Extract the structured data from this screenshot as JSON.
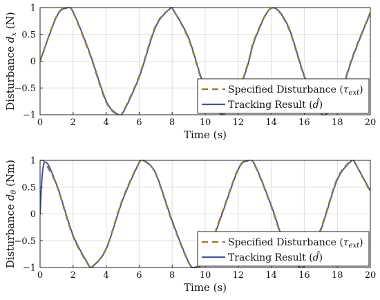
{
  "chart_data": [
    {
      "type": "line",
      "xlabel": "Time (s)",
      "ylabel": "Disturbance d_x (N)",
      "ylabel_parts": {
        "prefix": "Disturbance ",
        "symbol": "d",
        "subscript": "x",
        "suffix": " (N)"
      },
      "xlim": [
        0,
        20
      ],
      "ylim": [
        -1,
        1
      ],
      "x_ticks": [
        0,
        2,
        4,
        6,
        8,
        10,
        12,
        14,
        16,
        18,
        20
      ],
      "x_tick_labels": [
        "0",
        "2",
        "4",
        "6",
        "8",
        "10",
        "12",
        "14",
        "16",
        "18",
        "20"
      ],
      "y_ticks": [
        -1,
        -0.5,
        0,
        0.5,
        1
      ],
      "y_tick_labels": [
        "−1",
        "−0.5",
        "0",
        "0.5",
        "1"
      ],
      "grid": true,
      "legend_location": "bottom-right",
      "x": [
        0,
        1,
        1.6,
        2,
        3,
        4,
        4.7,
        5,
        6,
        7,
        7.9,
        8,
        9,
        10,
        11,
        12,
        12.6,
        13,
        14,
        15,
        16,
        17,
        17.3,
        18,
        19,
        20
      ],
      "series": [
        {
          "name": "Specified Disturbance (τ_ext)",
          "legend_label": {
            "text": "Specified Disturbance (",
            "symbol": "τ",
            "subscript": "ext",
            "close": ")"
          },
          "style": "dashed",
          "color": "#a07a2a",
          "values": [
            0.0,
            0.84,
            1.0,
            0.91,
            0.14,
            -0.76,
            -1.0,
            -0.96,
            -0.28,
            0.66,
            0.99,
            0.99,
            0.41,
            -0.54,
            -1.0,
            -0.54,
            -0.03,
            0.42,
            0.99,
            0.65,
            -0.29,
            -0.96,
            -0.98,
            -0.75,
            0.15,
            0.91
          ]
        },
        {
          "name": "Tracking Result (d̂)",
          "legend_label": {
            "text": "Tracking Result (",
            "symbol": "d̂",
            "close": ")"
          },
          "style": "solid",
          "color": "#3a56b4",
          "values": [
            0.0,
            0.83,
            0.99,
            0.92,
            0.16,
            -0.74,
            -0.99,
            -0.97,
            -0.3,
            0.64,
            0.99,
            0.99,
            0.43,
            -0.52,
            -0.99,
            -0.56,
            -0.05,
            0.4,
            0.99,
            0.67,
            -0.27,
            -0.95,
            -0.99,
            -0.77,
            0.13,
            0.9
          ]
        }
      ]
    },
    {
      "type": "line",
      "xlabel": "Time (s)",
      "ylabel": "Disturbance d_θ (Nm)",
      "ylabel_parts": {
        "prefix": "Disturbance ",
        "symbol": "d",
        "subscript": "θ",
        "suffix": " (Nm)"
      },
      "xlim": [
        0,
        20
      ],
      "ylim": [
        -1,
        1
      ],
      "x_ticks": [
        0,
        2,
        4,
        6,
        8,
        10,
        12,
        14,
        16,
        18,
        20
      ],
      "x_tick_labels": [
        "0",
        "2",
        "4",
        "6",
        "8",
        "10",
        "12",
        "14",
        "16",
        "18",
        "20"
      ],
      "y_ticks": [
        -1,
        -0.5,
        0,
        0.5,
        1
      ],
      "y_tick_labels": [
        "−1",
        "−0.5",
        "0",
        "0.5",
        "1"
      ],
      "grid": true,
      "legend_location": "bottom-right",
      "x": [
        0,
        0.25,
        1,
        2,
        3,
        3.14,
        4,
        5,
        6,
        6.28,
        7,
        8,
        9,
        9.42,
        10,
        11,
        12,
        12.57,
        13,
        14,
        15,
        15.71,
        16,
        17,
        18,
        18.85,
        19,
        20
      ],
      "series": [
        {
          "name": "Specified Disturbance (τ_ext)",
          "legend_label": {
            "text": "Specified Disturbance (",
            "symbol": "τ",
            "subscript": "ext",
            "close": ")"
          },
          "style": "dashed",
          "color": "#a07a2a",
          "values": [
            1.0,
            0.97,
            0.54,
            -0.42,
            -0.99,
            -1.0,
            -0.65,
            0.28,
            0.96,
            1.0,
            0.75,
            -0.15,
            -0.91,
            -1.0,
            -0.84,
            0.0,
            0.84,
            1.0,
            0.91,
            0.14,
            -0.76,
            -1.0,
            -0.96,
            -0.28,
            0.66,
            1.0,
            0.99,
            0.41
          ]
        },
        {
          "name": "Tracking Result (d̂)",
          "legend_label": {
            "text": "Tracking Result (",
            "symbol": "d̂",
            "close": ")"
          },
          "style": "solid",
          "color": "#3a56b4",
          "values": [
            0.0,
            0.95,
            0.55,
            -0.4,
            -0.98,
            -0.99,
            -0.66,
            0.26,
            0.95,
            0.99,
            0.76,
            -0.13,
            -0.9,
            -0.99,
            -0.85,
            -0.02,
            0.83,
            0.99,
            0.92,
            0.16,
            -0.74,
            -0.99,
            -0.97,
            -0.3,
            0.64,
            0.99,
            0.99,
            0.43
          ]
        }
      ]
    }
  ]
}
